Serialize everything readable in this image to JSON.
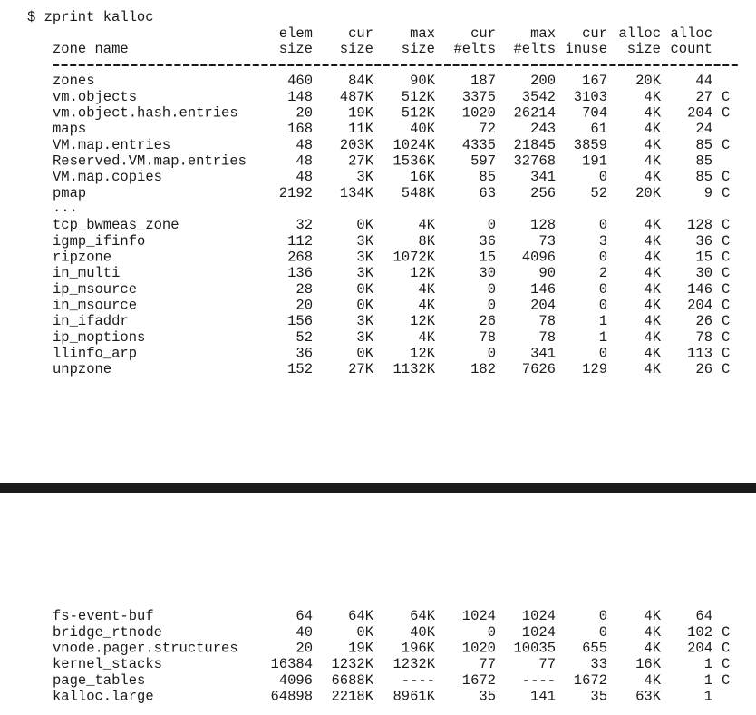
{
  "command": "$ zprint kalloc",
  "header": {
    "columns": [
      [
        "zone name"
      ],
      [
        "elem",
        "size"
      ],
      [
        "cur",
        "size"
      ],
      [
        "max",
        "size"
      ],
      [
        "cur",
        "#elts"
      ],
      [
        "max",
        "#elts"
      ],
      [
        "cur",
        "inuse"
      ],
      [
        "alloc",
        "size"
      ],
      [
        "alloc",
        "count"
      ]
    ]
  },
  "top_rows": [
    {
      "cells": [
        "zones",
        "460",
        "84K",
        "90K",
        "187",
        "200",
        "167",
        "20K",
        "44"
      ]
    },
    {
      "cells": [
        "vm.objects",
        "148",
        "487K",
        "512K",
        "3375",
        "3542",
        "3103",
        "4K",
        "27"
      ],
      "flag": "C"
    },
    {
      "cells": [
        "vm.object.hash.entries",
        "20",
        "19K",
        "512K",
        "1020",
        "26214",
        "704",
        "4K",
        "204"
      ],
      "flag": "C"
    },
    {
      "cells": [
        "maps",
        "168",
        "11K",
        "40K",
        "72",
        "243",
        "61",
        "4K",
        "24"
      ]
    },
    {
      "cells": [
        "VM.map.entries",
        "48",
        "203K",
        "1024K",
        "4335",
        "21845",
        "3859",
        "4K",
        "85"
      ],
      "flag": "C"
    },
    {
      "cells": [
        "Reserved.VM.map.entries",
        "48",
        "27K",
        "1536K",
        "597",
        "32768",
        "191",
        "4K",
        "85"
      ]
    },
    {
      "cells": [
        "VM.map.copies",
        "48",
        "3K",
        "16K",
        "85",
        "341",
        "0",
        "4K",
        "85"
      ],
      "flag": "C"
    },
    {
      "cells": [
        "pmap",
        "2192",
        "134K",
        "548K",
        "63",
        "256",
        "52",
        "20K",
        "9"
      ],
      "flag": "C"
    }
  ],
  "ellipsis": "...",
  "mid_rows": [
    {
      "cells": [
        "tcp_bwmeas_zone",
        "32",
        "0K",
        "4K",
        "0",
        "128",
        "0",
        "4K",
        "128"
      ],
      "flag": "C"
    },
    {
      "cells": [
        "igmp_ifinfo",
        "112",
        "3K",
        "8K",
        "36",
        "73",
        "3",
        "4K",
        "36"
      ],
      "flag": "C"
    },
    {
      "cells": [
        "ripzone",
        "268",
        "3K",
        "1072K",
        "15",
        "4096",
        "0",
        "4K",
        "15"
      ],
      "flag": "C"
    },
    {
      "cells": [
        "in_multi",
        "136",
        "3K",
        "12K",
        "30",
        "90",
        "2",
        "4K",
        "30"
      ],
      "flag": "C"
    },
    {
      "cells": [
        "ip_msource",
        "28",
        "0K",
        "4K",
        "0",
        "146",
        "0",
        "4K",
        "146"
      ],
      "flag": "C"
    },
    {
      "cells": [
        "in_msource",
        "20",
        "0K",
        "4K",
        "0",
        "204",
        "0",
        "4K",
        "204"
      ],
      "flag": "C"
    },
    {
      "cells": [
        "in_ifaddr",
        "156",
        "3K",
        "12K",
        "26",
        "78",
        "1",
        "4K",
        "26"
      ],
      "flag": "C"
    },
    {
      "cells": [
        "ip_moptions",
        "52",
        "3K",
        "4K",
        "78",
        "78",
        "1",
        "4K",
        "78"
      ],
      "flag": "C"
    },
    {
      "cells": [
        "llinfo_arp",
        "36",
        "0K",
        "12K",
        "0",
        "341",
        "0",
        "4K",
        "113"
      ],
      "flag": "C"
    },
    {
      "cells": [
        "unpzone",
        "152",
        "27K",
        "1132K",
        "182",
        "7626",
        "129",
        "4K",
        "26"
      ],
      "flag": "C"
    }
  ],
  "bottom_rows": [
    {
      "cells": [
        "fs-event-buf",
        "64",
        "64K",
        "64K",
        "1024",
        "1024",
        "0",
        "4K",
        "64"
      ]
    },
    {
      "cells": [
        "bridge_rtnode",
        "40",
        "0K",
        "40K",
        "0",
        "1024",
        "0",
        "4K",
        "102"
      ],
      "flag": "C"
    },
    {
      "cells": [
        "vnode.pager.structures",
        "20",
        "19K",
        "196K",
        "1020",
        "10035",
        "655",
        "4K",
        "204"
      ],
      "flag": "C"
    },
    {
      "cells": [
        "kernel_stacks",
        "16384",
        "1232K",
        "1232K",
        "77",
        "77",
        "33",
        "16K",
        "1"
      ],
      "flag": "C"
    },
    {
      "cells": [
        "page_tables",
        "4096",
        "6688K",
        "----",
        "1672",
        "----",
        "1672",
        "4K",
        "1"
      ],
      "flag": "C"
    },
    {
      "cells": [
        "kalloc.large",
        "64898",
        "2218K",
        "8961K",
        "35",
        "141",
        "35",
        "63K",
        "1"
      ]
    }
  ]
}
